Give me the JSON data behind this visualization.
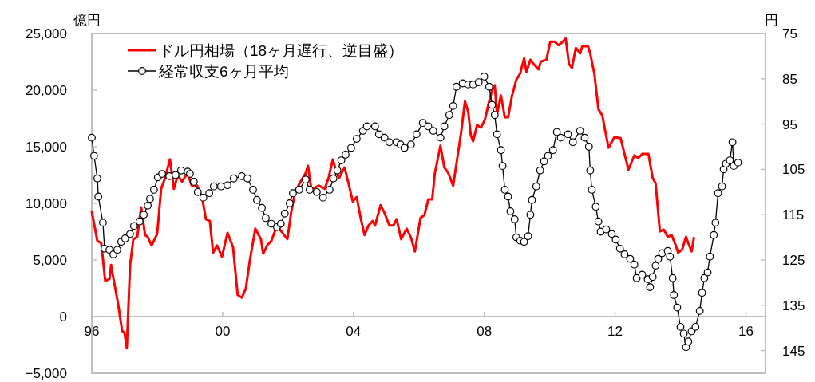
{
  "chart_data": {
    "type": "line",
    "ylabel": "億円",
    "y2label": "円",
    "legend": "top left",
    "line_style": "solid",
    "xlim": [
      1996,
      2016.6
    ],
    "xticks": [
      {
        "value": 1996,
        "label": "96"
      },
      {
        "value": 2000,
        "label": "00"
      },
      {
        "value": 2004,
        "label": "04"
      },
      {
        "value": 2008,
        "label": "08"
      },
      {
        "value": 2012,
        "label": "12"
      },
      {
        "value": 2016,
        "label": "16"
      }
    ],
    "ylim": [
      -5000,
      25000
    ],
    "yticks": [
      {
        "value": -5000,
        "label": "−5,000"
      },
      0,
      {
        "value": 5000,
        "label": "5,000"
      },
      {
        "value": 10000,
        "label": "10,000"
      },
      {
        "value": 15000,
        "label": "15,000"
      },
      {
        "value": 20000,
        "label": "20,000"
      },
      {
        "value": 25000,
        "label": "25,000"
      }
    ],
    "y2lim": [
      150,
      75
    ],
    "y2ticks": [
      75,
      85,
      95,
      105,
      115,
      125,
      135,
      145
    ],
    "series": [
      {
        "name": "ドル円相場（18ヶ月遅行、逆目盛）",
        "color": "#ff0000",
        "axis": "y2",
        "marker": "none",
        "x": [
          1996.0,
          1996.17,
          1996.29,
          1996.41,
          1996.54,
          1996.59,
          1996.68,
          1996.8,
          1996.93,
          1997.0,
          1997.07,
          1997.17,
          1997.27,
          1997.39,
          1997.51,
          1997.63,
          1997.71,
          1997.83,
          1998.0,
          1998.12,
          1998.24,
          1998.39,
          1998.51,
          1998.63,
          1998.76,
          1998.93,
          1999.05,
          1999.22,
          1999.37,
          1999.49,
          1999.61,
          1999.71,
          1999.83,
          1999.98,
          2000.15,
          2000.32,
          2000.46,
          2000.59,
          2000.71,
          2000.83,
          2001.0,
          2001.17,
          2001.24,
          2001.37,
          2001.49,
          2001.66,
          2001.85,
          2001.98,
          2002.1,
          2002.22,
          2002.39,
          2002.54,
          2002.61,
          2002.71,
          2002.95,
          2003.12,
          2003.24,
          2003.37,
          2003.44,
          2003.56,
          2003.73,
          2003.85,
          2003.98,
          2004.1,
          2004.22,
          2004.34,
          2004.46,
          2004.59,
          2004.66,
          2004.83,
          2004.95,
          2005.1,
          2005.22,
          2005.32,
          2005.46,
          2005.63,
          2005.76,
          2005.88,
          2006.05,
          2006.17,
          2006.29,
          2006.41,
          2006.49,
          2006.66,
          2006.78,
          2006.9,
          2007.05,
          2007.17,
          2007.29,
          2007.41,
          2007.51,
          2007.59,
          2007.66,
          2007.78,
          2007.9,
          2008.02,
          2008.15,
          2008.24,
          2008.32,
          2008.39,
          2008.51,
          2008.63,
          2008.73,
          2008.85,
          2008.98,
          2009.1,
          2009.22,
          2009.29,
          2009.41,
          2009.54,
          2009.66,
          2009.73,
          2009.9,
          2010.02,
          2010.15,
          2010.27,
          2010.39,
          2010.49,
          2010.59,
          2010.68,
          2010.8,
          2010.93,
          2011.0,
          2011.17,
          2011.24,
          2011.37,
          2011.49,
          2011.61,
          2011.68,
          2011.8,
          2011.98,
          2012.17,
          2012.29,
          2012.41,
          2012.59,
          2012.71,
          2012.83,
          2013.02,
          2013.15,
          2013.24,
          2013.37,
          2013.49,
          2013.61,
          2013.73,
          2013.85,
          2013.93,
          2014.05,
          2014.17,
          2014.24,
          2014.34,
          2014.41
        ],
        "values": [
          114.3,
          120.8,
          121.3,
          129.6,
          129.2,
          126.1,
          129.8,
          134.5,
          140.7,
          141.0,
          144.5,
          126.2,
          120.4,
          119.9,
          113.4,
          119.5,
          119.9,
          121.8,
          119.2,
          109.3,
          106.9,
          102.8,
          109.3,
          106.3,
          107.7,
          105.8,
          108.5,
          108.6,
          111.1,
          116.0,
          116.4,
          123.4,
          121.8,
          124.3,
          119.0,
          122.2,
          132.7,
          133.3,
          131.3,
          125.2,
          118.1,
          120.4,
          123.6,
          121.7,
          120.8,
          117.4,
          119.2,
          120.4,
          114.3,
          109.9,
          107.6,
          105.8,
          104.2,
          109.3,
          108.6,
          109.3,
          106.9,
          102.8,
          104.6,
          106.9,
          104.6,
          108.1,
          112.1,
          111.1,
          115.7,
          119.5,
          117.4,
          116.4,
          117.4,
          112.9,
          114.6,
          117.4,
          117.4,
          116.0,
          120.4,
          118.1,
          120.1,
          123.1,
          115.7,
          115.1,
          111.6,
          111.6,
          105.8,
          99.8,
          104.6,
          105.8,
          108.6,
          102.8,
          97.0,
          90.0,
          92.3,
          97.5,
          98.8,
          95.2,
          95.8,
          94.0,
          90.0,
          87.5,
          86.4,
          92.8,
          88.7,
          93.5,
          93.5,
          88.7,
          85.2,
          83.8,
          80.5,
          83.5,
          80.8,
          82.0,
          82.9,
          81.2,
          80.8,
          76.8,
          76.8,
          77.6,
          76.9,
          76.1,
          81.7,
          82.6,
          78.2,
          79.4,
          77.8,
          77.8,
          79.4,
          84.0,
          91.7,
          93.1,
          95.8,
          100.2,
          97.9,
          98.1,
          101.6,
          105.1,
          101.9,
          102.5,
          101.6,
          101.6,
          106.9,
          108.1,
          118.7,
          118.3,
          119.9,
          119.5,
          121.7,
          123.4,
          122.7,
          119.9,
          121.3,
          123.1,
          120.1
        ]
      },
      {
        "name": "経常収支6ヶ月平均",
        "color": "#000000",
        "marker": "circle",
        "x": [
          1996.0,
          1996.07,
          1996.17,
          1996.2,
          1996.34,
          1996.39,
          1996.54,
          1996.66,
          1996.78,
          1996.9,
          1997.02,
          1997.17,
          1997.29,
          1997.46,
          1997.59,
          1997.71,
          1997.78,
          1997.9,
          1998.02,
          1998.15,
          1998.37,
          1998.56,
          1998.73,
          1998.93,
          1999.0,
          1999.12,
          1999.24,
          1999.41,
          1999.59,
          1999.73,
          1999.95,
          2000.15,
          2000.34,
          2000.59,
          2000.76,
          2000.93,
          2001.05,
          2001.2,
          2001.32,
          2001.49,
          2001.66,
          2001.78,
          2001.9,
          2002.05,
          2002.15,
          2002.34,
          2002.54,
          2002.66,
          2002.88,
          2003.07,
          2003.27,
          2003.39,
          2003.51,
          2003.63,
          2003.76,
          2003.93,
          2004.1,
          2004.29,
          2004.41,
          2004.66,
          2004.78,
          2004.95,
          2005.1,
          2005.32,
          2005.44,
          2005.56,
          2005.76,
          2005.93,
          2006.12,
          2006.29,
          2006.44,
          2006.66,
          2006.78,
          2006.93,
          2007.05,
          2007.15,
          2007.34,
          2007.51,
          2007.66,
          2007.83,
          2008.0,
          2008.15,
          2008.24,
          2008.32,
          2008.39,
          2008.51,
          2008.56,
          2008.63,
          2008.73,
          2008.8,
          2008.93,
          2008.98,
          2009.1,
          2009.22,
          2009.34,
          2009.41,
          2009.46,
          2009.59,
          2009.71,
          2009.83,
          2009.95,
          2010.1,
          2010.22,
          2010.34,
          2010.56,
          2010.71,
          2010.93,
          2011.07,
          2011.2,
          2011.24,
          2011.29,
          2011.41,
          2011.49,
          2011.56,
          2011.73,
          2011.9,
          2012.02,
          2012.15,
          2012.29,
          2012.46,
          2012.59,
          2012.66,
          2012.83,
          2013.0,
          2013.07,
          2013.15,
          2013.24,
          2013.32,
          2013.44,
          2013.61,
          2013.68,
          2013.76,
          2013.8,
          2013.9,
          2014.0,
          2014.1,
          2014.17,
          2014.24,
          2014.34,
          2014.46,
          2014.59,
          2014.66,
          2014.73,
          2014.83,
          2014.9,
          2015.02,
          2015.07,
          2015.15,
          2015.27,
          2015.32,
          2015.39,
          2015.51,
          2015.59,
          2015.63,
          2015.76
        ],
        "values": [
          15800,
          14200,
          12200,
          10600,
          8300,
          6000,
          5900,
          5500,
          5900,
          6600,
          6900,
          7300,
          8000,
          8400,
          9000,
          9800,
          10400,
          11200,
          12300,
          12600,
          12400,
          12500,
          12900,
          12800,
          12600,
          11900,
          11000,
          10500,
          10900,
          11500,
          11500,
          11600,
          12200,
          12400,
          12200,
          11200,
          10300,
          9600,
          8700,
          8200,
          7900,
          8200,
          9100,
          10000,
          10900,
          11200,
          12100,
          11200,
          11000,
          10500,
          11200,
          12200,
          12900,
          13800,
          14300,
          14900,
          15700,
          16400,
          16800,
          16800,
          16100,
          15800,
          15400,
          15400,
          15200,
          14900,
          15200,
          16100,
          17100,
          16800,
          16400,
          15800,
          16800,
          17800,
          18600,
          20300,
          20600,
          20500,
          20500,
          20700,
          21200,
          20300,
          18700,
          17800,
          16100,
          14700,
          13300,
          11200,
          10600,
          9300,
          8600,
          7000,
          6700,
          6600,
          7100,
          9000,
          10300,
          11500,
          12900,
          13700,
          14200,
          14700,
          16300,
          15800,
          16100,
          15400,
          16400,
          15800,
          15000,
          12900,
          11200,
          9700,
          8400,
          7500,
          7700,
          7300,
          6800,
          6000,
          5500,
          5100,
          4600,
          3400,
          3700,
          3300,
          2600,
          3500,
          4500,
          5100,
          5600,
          5800,
          5300,
          3400,
          1900,
          800,
          -900,
          -1500,
          -2700,
          -2200,
          -1300,
          -900,
          500,
          2100,
          3400,
          3900,
          5300,
          7200,
          8300,
          10900,
          11500,
          13000,
          13500,
          13800,
          15400,
          13300,
          13600
        ]
      }
    ]
  }
}
